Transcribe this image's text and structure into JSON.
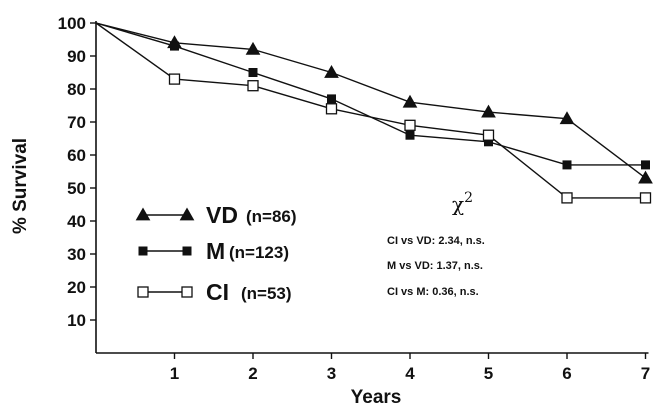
{
  "chart_data": {
    "type": "line",
    "xlabel": "Years",
    "ylabel": "% Survival",
    "xlim": [
      0,
      7
    ],
    "ylim": [
      0,
      100
    ],
    "x_ticks": [
      1,
      2,
      3,
      4,
      5,
      6,
      7
    ],
    "y_ticks": [
      10,
      20,
      30,
      40,
      50,
      60,
      70,
      80,
      90,
      100
    ],
    "grid": false,
    "legend_position": "lower-left",
    "series": [
      {
        "name": "VD",
        "legend_label": "VD",
        "legend_n": "(n=86)",
        "marker": "filled-triangle",
        "color": "#111111",
        "x": [
          0,
          1,
          2,
          3,
          4,
          5,
          6,
          7
        ],
        "values": [
          100,
          94,
          92,
          85,
          76,
          73,
          71,
          53
        ]
      },
      {
        "name": "M",
        "legend_label": "M",
        "legend_n": "(n=123)",
        "marker": "filled-square",
        "color": "#111111",
        "x": [
          0,
          1,
          2,
          3,
          4,
          5,
          6,
          7
        ],
        "values": [
          100,
          93,
          85,
          77,
          66,
          64,
          57,
          57
        ]
      },
      {
        "name": "CI",
        "legend_label": "CI",
        "legend_n": "(n=53)",
        "marker": "open-square",
        "color": "#111111",
        "x": [
          0,
          1,
          2,
          3,
          4,
          5,
          6,
          7
        ],
        "values": [
          100,
          83,
          81,
          74,
          69,
          66,
          47,
          47
        ]
      }
    ],
    "annotation": {
      "title": "χ",
      "superscript": "2",
      "lines": [
        "CI vs VD: 2.34, n.s.",
        "M vs VD: 1.37, n.s.",
        "CI vs M: 0.36, n.s."
      ]
    }
  }
}
